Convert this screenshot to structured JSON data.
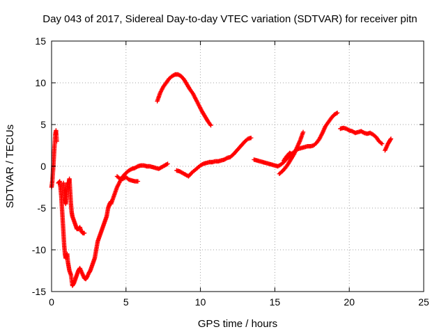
{
  "chart_data": {
    "type": "scatter",
    "title": "Day 043 of 2017, Sidereal Day-to-day VTEC variation (SDTVAR) for receiver pitn",
    "xlabel": "GPS time / hours",
    "ylabel": "SDTVAR / TECUs",
    "xlim": [
      0,
      25
    ],
    "ylim": [
      -15,
      15
    ],
    "xticks": [
      0,
      5,
      10,
      15,
      20,
      25
    ],
    "yticks": [
      -15,
      -10,
      -5,
      0,
      5,
      10,
      15
    ],
    "grid": true,
    "color": "#ff0000",
    "marker": "plus",
    "segments": [
      {
        "x": [
          0.0,
          0.05,
          0.1,
          0.15,
          0.2,
          0.25,
          0.3,
          0.35
        ],
        "y": [
          -2.5,
          -1.8,
          -0.5,
          1.0,
          2.5,
          3.8,
          4.3,
          3.0
        ]
      },
      {
        "x": [
          0.45,
          0.55,
          0.6,
          0.65,
          0.7,
          0.75,
          0.8,
          0.85,
          0.9,
          0.95,
          1.0,
          1.05,
          1.1,
          1.15,
          1.2,
          1.3,
          1.4,
          1.5,
          1.6,
          1.7,
          1.8,
          1.9,
          2.0,
          2.1,
          2.2,
          2.3,
          2.4,
          2.5,
          2.6,
          2.7,
          2.8,
          2.9,
          3.0,
          3.1,
          3.2,
          3.3,
          3.4,
          3.5,
          3.6,
          3.7,
          3.8,
          3.9,
          4.0
        ],
        "y": [
          -2.0,
          -1.8,
          -2.5,
          -3.5,
          -5.0,
          -6.5,
          -8.0,
          -9.5,
          -10.5,
          -11.0,
          -10.8,
          -10.5,
          -11.5,
          -12.0,
          -12.5,
          -13.0,
          -14.3,
          -14.0,
          -13.5,
          -13.0,
          -12.5,
          -12.2,
          -12.6,
          -13.0,
          -13.4,
          -13.5,
          -13.2,
          -12.8,
          -12.5,
          -12.0,
          -11.5,
          -11.0,
          -10.0,
          -9.0,
          -8.5,
          -8.0,
          -7.5,
          -7.0,
          -6.5,
          -6.0,
          -5.0,
          -4.5,
          -4.2
        ]
      },
      {
        "x": [
          0.8,
          0.85,
          0.9,
          0.95,
          1.0,
          1.05,
          1.1,
          1.15,
          1.2,
          1.25,
          1.3,
          1.35,
          1.4,
          1.5,
          1.6,
          1.7,
          1.8,
          1.9,
          2.0,
          2.1,
          2.2
        ],
        "y": [
          -2.0,
          -3.0,
          -4.0,
          -4.5,
          -3.5,
          -2.5,
          -2.0,
          -2.0,
          -1.5,
          -3.0,
          -4.5,
          -5.5,
          -6.0,
          -6.5,
          -7.0,
          -7.5,
          -7.5,
          -7.3,
          -7.8,
          -8.0,
          -8.0
        ]
      },
      {
        "x": [
          4.0,
          4.2,
          4.4,
          4.6,
          4.8,
          5.0,
          5.2,
          5.4,
          5.6,
          5.8,
          6.0,
          6.2,
          6.4,
          6.6,
          6.8,
          7.0,
          7.2,
          7.4,
          7.6,
          7.8
        ],
        "y": [
          -4.5,
          -3.5,
          -2.5,
          -1.8,
          -1.2,
          -0.8,
          -0.5,
          -0.3,
          -0.2,
          0.0,
          0.1,
          0.1,
          0.0,
          0.0,
          -0.1,
          -0.2,
          -0.3,
          -0.1,
          0.1,
          0.3
        ]
      },
      {
        "x": [
          4.4,
          4.6,
          4.8,
          5.0,
          5.2,
          5.4,
          5.6,
          5.8
        ],
        "y": [
          -1.2,
          -1.5,
          -1.5,
          -1.3,
          -1.6,
          -1.7,
          -1.8,
          -1.8
        ]
      },
      {
        "x": [
          7.1,
          7.3,
          7.5,
          7.7,
          7.9,
          8.1,
          8.3,
          8.5,
          8.7,
          8.9,
          9.1,
          9.3,
          9.5,
          9.7,
          9.9,
          10.1,
          10.3,
          10.5,
          10.7
        ],
        "y": [
          7.8,
          8.8,
          9.5,
          10.0,
          10.5,
          10.8,
          11.0,
          11.0,
          10.8,
          10.4,
          9.8,
          9.2,
          8.7,
          8.0,
          7.3,
          6.6,
          6.0,
          5.4,
          4.9
        ]
      },
      {
        "x": [
          8.4,
          8.6,
          8.8,
          9.0,
          9.2,
          9.4,
          9.6,
          9.8,
          10.0,
          10.2,
          10.4,
          10.6,
          10.8,
          11.0,
          11.2,
          11.4,
          11.6,
          11.8,
          12.0,
          12.2,
          12.4,
          12.6,
          12.8,
          13.0,
          13.2,
          13.4
        ],
        "y": [
          -0.5,
          -0.6,
          -0.8,
          -1.0,
          -1.2,
          -0.8,
          -0.5,
          -0.2,
          0.1,
          0.3,
          0.4,
          0.5,
          0.5,
          0.6,
          0.6,
          0.7,
          0.8,
          1.0,
          1.1,
          1.4,
          1.8,
          2.2,
          2.6,
          3.0,
          3.3,
          3.4
        ]
      },
      {
        "x": [
          13.6,
          13.8,
          14.0,
          14.2,
          14.4,
          14.6,
          14.8,
          15.0,
          15.2,
          15.4,
          15.6,
          15.8,
          16.0,
          16.2,
          16.4,
          16.6,
          16.8,
          17.0,
          17.2,
          17.4,
          17.6,
          17.8,
          18.0,
          18.2,
          18.4,
          18.6,
          18.8,
          19.0,
          19.2
        ],
        "y": [
          0.8,
          0.7,
          0.6,
          0.5,
          0.4,
          0.3,
          0.2,
          0.1,
          0.0,
          0.2,
          0.5,
          0.9,
          1.3,
          1.6,
          1.9,
          2.1,
          2.2,
          2.3,
          2.4,
          2.4,
          2.5,
          2.8,
          3.3,
          4.0,
          4.8,
          5.3,
          5.8,
          6.2,
          6.4
        ]
      },
      {
        "x": [
          15.3,
          15.5,
          15.7,
          15.9,
          16.1,
          16.3,
          16.5,
          16.7,
          16.9
        ],
        "y": [
          -0.9,
          -0.6,
          -0.2,
          0.3,
          0.9,
          1.5,
          2.3,
          3.1,
          4.1
        ]
      },
      {
        "x": [
          15.6,
          15.8,
          16.0,
          16.2
        ],
        "y": [
          0.7,
          1.2,
          1.6,
          1.4
        ]
      },
      {
        "x": [
          19.4,
          19.6,
          19.8,
          20.0,
          20.2,
          20.4,
          20.6,
          20.8,
          21.0,
          21.2,
          21.4,
          21.6,
          21.8,
          22.0,
          22.2
        ],
        "y": [
          4.5,
          4.6,
          4.5,
          4.3,
          4.2,
          4.0,
          4.1,
          4.2,
          4.0,
          3.9,
          4.0,
          3.8,
          3.5,
          3.0,
          2.7
        ]
      },
      {
        "x": [
          22.4,
          22.5,
          22.6,
          22.7,
          22.8
        ],
        "y": [
          1.9,
          2.3,
          2.7,
          3.0,
          3.3
        ]
      }
    ]
  }
}
